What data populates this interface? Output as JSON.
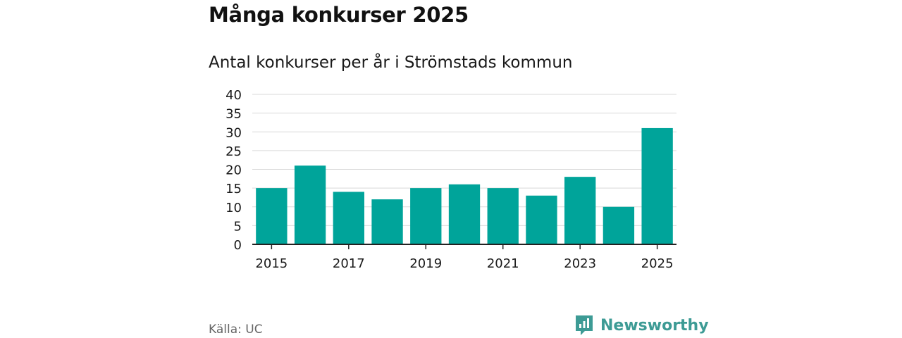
{
  "header": {
    "title": "Många konkurser 2025",
    "subtitle": "Antal konkurser per år i Strömstads kommun"
  },
  "footer": {
    "source": "Källa: UC",
    "brand": "Newsworthy"
  },
  "colors": {
    "bar": "#00a49a",
    "brand": "#3d9b95",
    "grid": "#d9d9d9",
    "axis": "#222222"
  },
  "chart_data": {
    "type": "bar",
    "title": "Antal konkurser per år i Strömstads kommun",
    "xlabel": "",
    "ylabel": "",
    "categories": [
      "2015",
      "2016",
      "2017",
      "2018",
      "2019",
      "2020",
      "2021",
      "2022",
      "2023",
      "2024",
      "2025"
    ],
    "values": [
      15,
      21,
      14,
      12,
      15,
      16,
      15,
      13,
      18,
      10,
      31
    ],
    "x_tick_labels": [
      "2015",
      "2017",
      "2019",
      "2021",
      "2023",
      "2025"
    ],
    "ylim": [
      0,
      40
    ],
    "y_ticks": [
      0,
      5,
      10,
      15,
      20,
      25,
      30,
      35,
      40
    ],
    "grid": true
  }
}
